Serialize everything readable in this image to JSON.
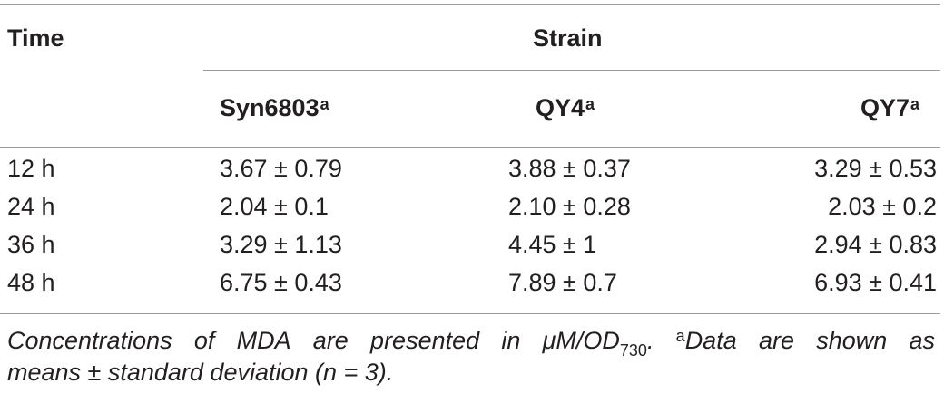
{
  "table": {
    "header": {
      "time": "Time",
      "strain": "Strain",
      "columns": [
        {
          "name": "Syn6803",
          "sup": "a"
        },
        {
          "name": "QY4",
          "sup": "a"
        },
        {
          "name": "QY7",
          "sup": "a"
        }
      ]
    },
    "rows": [
      {
        "time": "12 h",
        "syn6803": "3.67 ± 0.79",
        "qy4": "3.88 ± 0.37",
        "qy7": "3.29 ± 0.53"
      },
      {
        "time": "24 h",
        "syn6803": "2.04 ± 0.1",
        "qy4": "2.10 ± 0.28",
        "qy7": "2.03 ± 0.2"
      },
      {
        "time": "36 h",
        "syn6803": "3.29 ± 1.13",
        "qy4": "4.45 ± 1",
        "qy7": "2.94 ± 0.83"
      },
      {
        "time": "48 h",
        "syn6803": "6.75 ± 0.43",
        "qy4": "7.89 ± 0.7",
        "qy7": "6.93 ± 0.41"
      }
    ]
  },
  "footnote": {
    "words_line1": [
      "Concentrations",
      "of",
      "MDA",
      "are",
      "presented",
      "in"
    ],
    "unit_main": "μM/OD",
    "unit_sub": "730",
    "sup_marker": "a",
    "words_line1_tail": [
      "Data",
      "are",
      "shown",
      "as"
    ],
    "line2": "means ± standard deviation (n = 3)."
  }
}
